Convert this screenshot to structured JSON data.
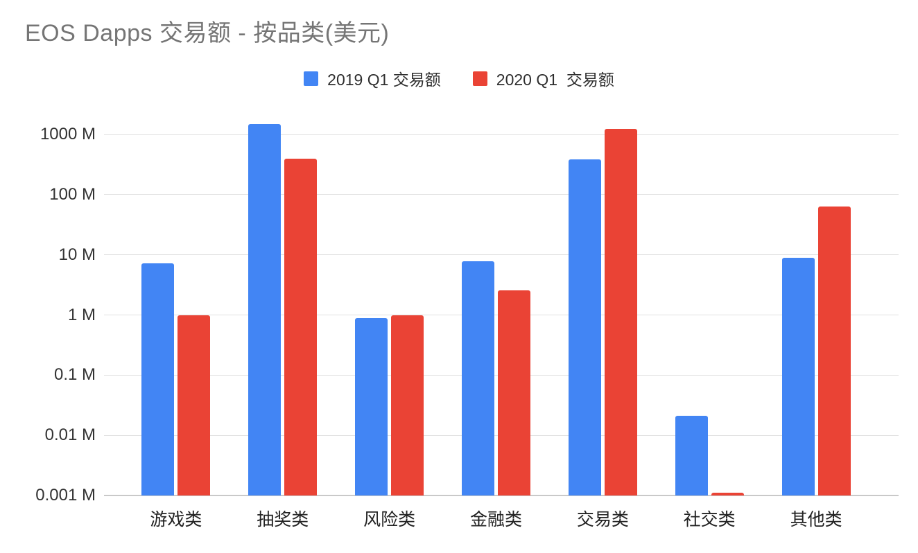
{
  "chart_data": {
    "type": "bar",
    "title": "EOS Dapps 交易额 - 按品类(美元)",
    "categories": [
      "游戏类",
      "抽奖类",
      "风险类",
      "金融类",
      "交易类",
      "社交类",
      "其他类"
    ],
    "series": [
      {
        "name": "2019 Q1 交易额",
        "color": "#4285F4",
        "values": [
          7.2,
          1500,
          0.9,
          7.8,
          390,
          0.021,
          9
        ]
      },
      {
        "name": "2020 Q1  交易额",
        "color": "#EA4335",
        "values": [
          1.0,
          400,
          1.0,
          2.6,
          1250,
          0.0011,
          64
        ]
      }
    ],
    "y_axis": {
      "scale": "log",
      "min": 0.001,
      "max": 1000,
      "unit": "M",
      "ticks": [
        {
          "label": "1000 M",
          "value": 1000
        },
        {
          "label": "100 M",
          "value": 100
        },
        {
          "label": "10 M",
          "value": 10
        },
        {
          "label": "1 M",
          "value": 1
        },
        {
          "label": "0.1 M",
          "value": 0.1
        },
        {
          "label": "0.01 M",
          "value": 0.01
        },
        {
          "label": "0.001 M",
          "value": 0.001
        }
      ]
    },
    "legend_position": "top",
    "grid": true
  },
  "colors": {
    "title": "#757575",
    "axis_label": "#333333",
    "category_label": "#222222",
    "gridline": "#e1e1e1",
    "baseline": "#c9c9c9",
    "background": "#ffffff"
  }
}
